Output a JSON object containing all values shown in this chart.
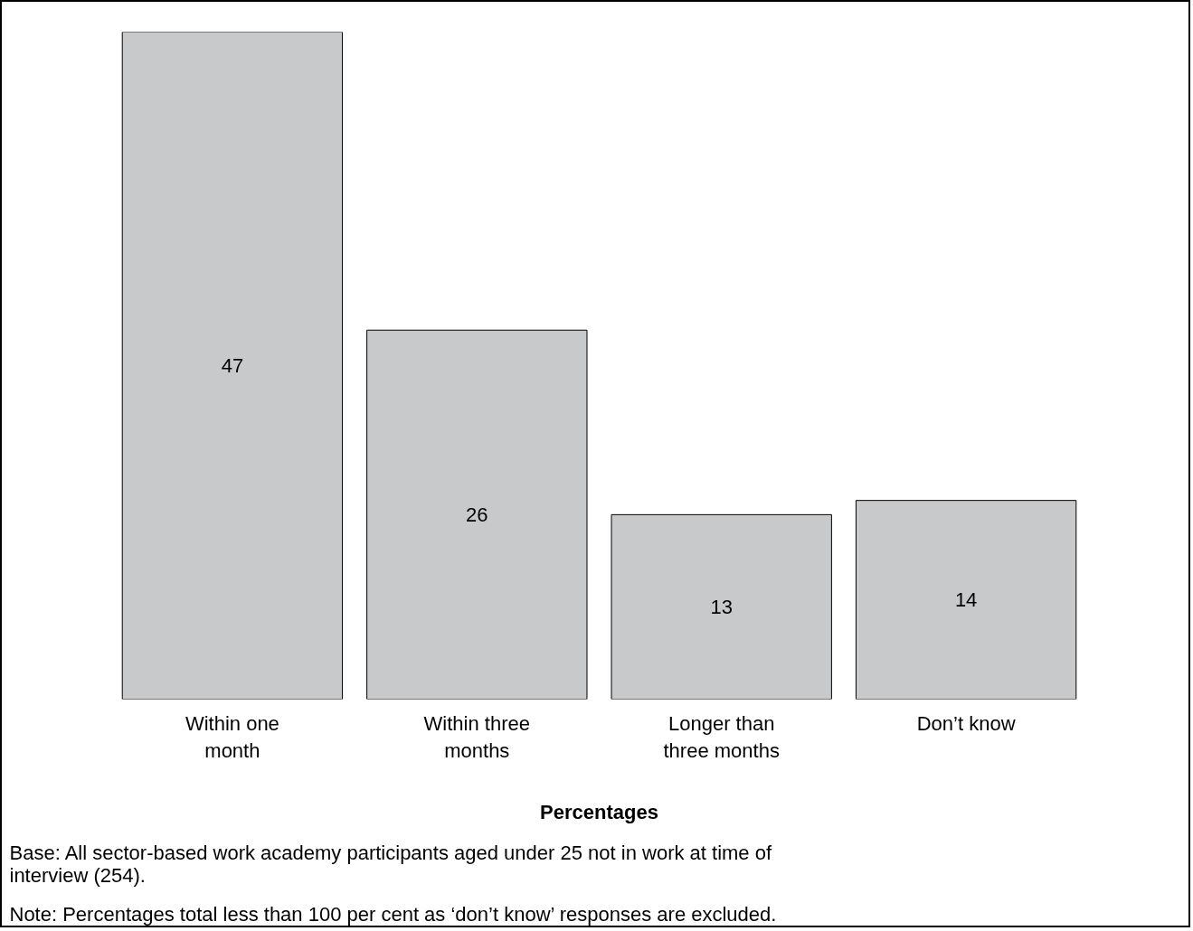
{
  "chart_data": {
    "type": "bar",
    "categories": [
      "Within one month",
      "Within three months",
      "Longer than three months",
      "Don’t know"
    ],
    "values": [
      47,
      26,
      13,
      14
    ],
    "color": "#c8c9cb",
    "data_labels": true,
    "grid": false,
    "tick_labels": "x",
    "xlabel": "Percentages",
    "annotations": [
      "Base: All sector-based work academy participants aged under 25 not in work at time of interview (254).",
      "Note: Percentages total less than 100 per cent as ‘don’t know’ responses are excluded."
    ]
  }
}
